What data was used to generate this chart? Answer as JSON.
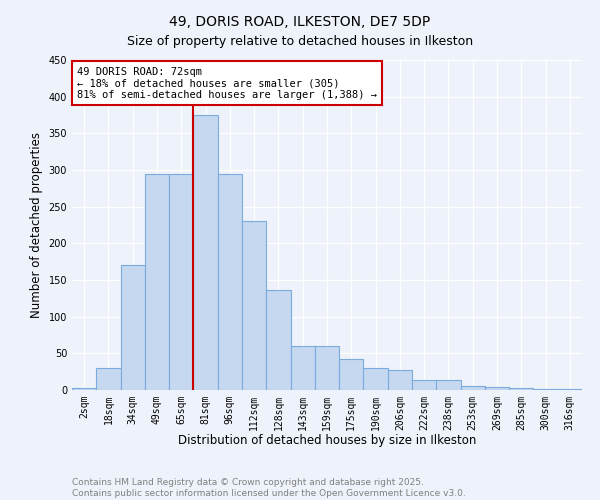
{
  "title": "49, DORIS ROAD, ILKESTON, DE7 5DP",
  "subtitle": "Size of property relative to detached houses in Ilkeston",
  "xlabel": "Distribution of detached houses by size in Ilkeston",
  "ylabel": "Number of detached properties",
  "bar_color": "#c5d8f0",
  "bar_edge_color": "#7aabdc",
  "background_color": "#eef2fa",
  "grid_color": "#ffffff",
  "categories": [
    "2sqm",
    "18sqm",
    "34sqm",
    "49sqm",
    "65sqm",
    "81sqm",
    "96sqm",
    "112sqm",
    "128sqm",
    "143sqm",
    "159sqm",
    "175sqm",
    "190sqm",
    "206sqm",
    "222sqm",
    "238sqm",
    "253sqm",
    "269sqm",
    "285sqm",
    "300sqm",
    "316sqm"
  ],
  "values": [
    3,
    30,
    170,
    295,
    295,
    375,
    295,
    230,
    137,
    60,
    60,
    42,
    30,
    27,
    13,
    13,
    5,
    4,
    3,
    1,
    1
  ],
  "vline_x": 5.0,
  "vline_color": "#cc0000",
  "annotation_title": "49 DORIS ROAD: 72sqm",
  "annotation_line1": "← 18% of detached houses are smaller (305)",
  "annotation_line2": "81% of semi-detached houses are larger (1,388) →",
  "annotation_box_color": "#ffffff",
  "annotation_box_edge": "#cc0000",
  "ylim": [
    0,
    450
  ],
  "yticks": [
    0,
    50,
    100,
    150,
    200,
    250,
    300,
    350,
    400,
    450
  ],
  "title_fontsize": 10,
  "subtitle_fontsize": 9,
  "axis_label_fontsize": 8.5,
  "tick_fontsize": 7,
  "annotation_fontsize": 7.5,
  "footer_fontsize": 6.5,
  "footer_line1": "Contains HM Land Registry data © Crown copyright and database right 2025.",
  "footer_line2": "Contains public sector information licensed under the Open Government Licence v3.0."
}
